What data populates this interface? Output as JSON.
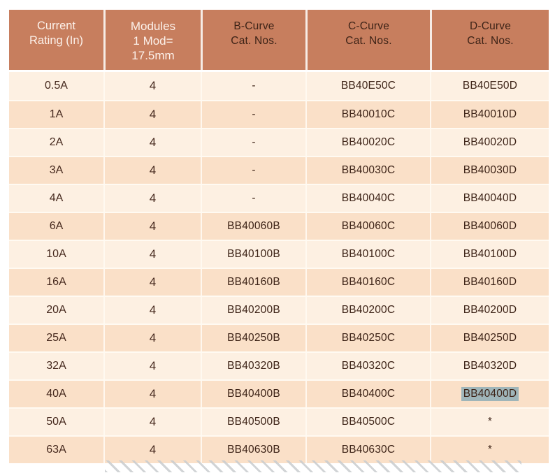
{
  "palette": {
    "header_bg": "#c77e5e",
    "row_light": "#fdf0e2",
    "row_dark": "#fae0c8",
    "header_text": "#fcf1ea",
    "body_text": "#46291e",
    "selection_highlight": "#9fb5b9",
    "hatch_line": "#c9cccf"
  },
  "table": {
    "headers": [
      {
        "id": "current_rating",
        "label": "Current\nRating (In)"
      },
      {
        "id": "modules",
        "label": "Modules\n1 Mod=\n17.5mm"
      },
      {
        "id": "b_curve",
        "label": "B-Curve\nCat. Nos."
      },
      {
        "id": "c_curve",
        "label": "C-Curve\nCat. Nos."
      },
      {
        "id": "d_curve",
        "label": "D-Curve\nCat. Nos."
      }
    ],
    "rows": [
      {
        "rating": "0.5A",
        "modules": "4",
        "b_curve": "-",
        "c_curve": "BB40E50C",
        "d_curve": "BB40E50D",
        "d_selected": false
      },
      {
        "rating": "1A",
        "modules": "4",
        "b_curve": "-",
        "c_curve": "BB40010C",
        "d_curve": "BB40010D",
        "d_selected": false
      },
      {
        "rating": "2A",
        "modules": "4",
        "b_curve": "-",
        "c_curve": "BB40020C",
        "d_curve": "BB40020D",
        "d_selected": false
      },
      {
        "rating": "3A",
        "modules": "4",
        "b_curve": "-",
        "c_curve": "BB40030C",
        "d_curve": "BB40030D",
        "d_selected": false
      },
      {
        "rating": "4A",
        "modules": "4",
        "b_curve": "-",
        "c_curve": "BB40040C",
        "d_curve": "BB40040D",
        "d_selected": false
      },
      {
        "rating": "6A",
        "modules": "4",
        "b_curve": "BB40060B",
        "c_curve": "BB40060C",
        "d_curve": "BB40060D",
        "d_selected": false
      },
      {
        "rating": "10A",
        "modules": "4",
        "b_curve": "BB40100B",
        "c_curve": "BB40100C",
        "d_curve": "BB40100D",
        "d_selected": false
      },
      {
        "rating": "16A",
        "modules": "4",
        "b_curve": "BB40160B",
        "c_curve": "BB40160C",
        "d_curve": "BB40160D",
        "d_selected": false
      },
      {
        "rating": "20A",
        "modules": "4",
        "b_curve": "BB40200B",
        "c_curve": "BB40200C",
        "d_curve": "BB40200D",
        "d_selected": false
      },
      {
        "rating": "25A",
        "modules": "4",
        "b_curve": "BB40250B",
        "c_curve": "BB40250C",
        "d_curve": "BB40250D",
        "d_selected": false
      },
      {
        "rating": "32A",
        "modules": "4",
        "b_curve": "BB40320B",
        "c_curve": "BB40320C",
        "d_curve": "BB40320D",
        "d_selected": false
      },
      {
        "rating": "40A",
        "modules": "4",
        "b_curve": "BB40400B",
        "c_curve": "BB40400C",
        "d_curve": "BB40400D",
        "d_selected": true
      },
      {
        "rating": "50A",
        "modules": "4",
        "b_curve": "BB40500B",
        "c_curve": "BB40500C",
        "d_curve": "*",
        "d_selected": false
      },
      {
        "rating": "63A",
        "modules": "4",
        "b_curve": "BB40630B",
        "c_curve": "BB40630C",
        "d_curve": "*",
        "d_selected": false
      }
    ]
  }
}
